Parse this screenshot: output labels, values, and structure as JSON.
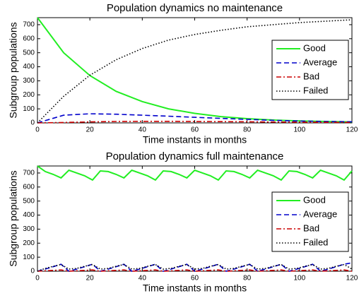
{
  "chart_data": [
    {
      "type": "line",
      "title": "Population dynamics no maintenance",
      "xlabel": "Time instants in months",
      "ylabel": "Subgroup populations",
      "x": [
        0,
        10,
        20,
        30,
        40,
        50,
        60,
        70,
        80,
        90,
        100,
        110,
        120
      ],
      "series": [
        {
          "name": "Good",
          "color": "#22ee22",
          "dash": "solid",
          "values": [
            750,
            500,
            337,
            225,
            152,
            100,
            68,
            45,
            30,
            20,
            14,
            10,
            7
          ]
        },
        {
          "name": "Average",
          "color": "#0000cc",
          "dash": "dashed",
          "values": [
            0,
            55,
            65,
            62,
            55,
            48,
            40,
            32,
            25,
            18,
            13,
            10,
            8
          ]
        },
        {
          "name": "Bad",
          "color": "#cc0000",
          "dash": "dashdot",
          "values": [
            0,
            3,
            7,
            10,
            11,
            11,
            10,
            9,
            8,
            6,
            5,
            4,
            3
          ]
        },
        {
          "name": "Failed",
          "color": "#000000",
          "dash": "dotted",
          "values": [
            0,
            190,
            340,
            450,
            530,
            590,
            630,
            660,
            685,
            700,
            715,
            725,
            735
          ]
        }
      ],
      "xlim": [
        0,
        120
      ],
      "xticks": [
        0,
        20,
        40,
        60,
        80,
        100,
        120
      ],
      "ylim": [
        0,
        750
      ],
      "yticks": [
        0,
        100,
        200,
        300,
        400,
        500,
        600,
        700
      ],
      "legend": "northeast"
    },
    {
      "type": "line",
      "title": "Population dynamics full maintenance",
      "xlabel": "Time instants in months",
      "ylabel": "Subgroup populations",
      "x": [
        0,
        3,
        6,
        9,
        12,
        15,
        18,
        21,
        24,
        27,
        30,
        33,
        36,
        39,
        42,
        45,
        48,
        51,
        54,
        57,
        60,
        63,
        66,
        69,
        72,
        75,
        78,
        81,
        84,
        87,
        90,
        93,
        96,
        99,
        102,
        105,
        108,
        111,
        114,
        117,
        120
      ],
      "series": [
        {
          "name": "Good",
          "color": "#22ee22",
          "dash": "solid",
          "values": [
            750,
            710,
            690,
            665,
            720,
            700,
            680,
            650,
            715,
            710,
            690,
            665,
            720,
            700,
            680,
            650,
            715,
            710,
            690,
            665,
            720,
            700,
            680,
            650,
            715,
            710,
            690,
            665,
            720,
            700,
            680,
            650,
            715,
            710,
            690,
            665,
            720,
            700,
            680,
            650,
            715
          ]
        },
        {
          "name": "Average",
          "color": "#0000cc",
          "dash": "dashed",
          "values": [
            0,
            15,
            32,
            50,
            0,
            15,
            32,
            50,
            0,
            15,
            32,
            50,
            0,
            15,
            32,
            50,
            0,
            15,
            32,
            50,
            0,
            15,
            32,
            50,
            0,
            15,
            32,
            50,
            0,
            15,
            32,
            50,
            0,
            15,
            32,
            50,
            0,
            15,
            32,
            50,
            60
          ]
        },
        {
          "name": "Bad",
          "color": "#cc0000",
          "dash": "dashdot",
          "values": [
            0,
            3,
            6,
            9,
            0,
            3,
            6,
            9,
            0,
            3,
            6,
            9,
            0,
            3,
            6,
            9,
            0,
            3,
            6,
            9,
            0,
            3,
            6,
            9,
            0,
            3,
            6,
            9,
            0,
            3,
            6,
            9,
            0,
            3,
            6,
            9,
            0,
            3,
            6,
            9,
            0
          ]
        },
        {
          "name": "Failed",
          "color": "#000000",
          "dash": "dotted",
          "values": [
            0,
            20,
            35,
            48,
            15,
            20,
            35,
            48,
            15,
            20,
            35,
            48,
            15,
            20,
            35,
            48,
            15,
            20,
            35,
            48,
            15,
            20,
            35,
            48,
            15,
            20,
            35,
            48,
            15,
            20,
            35,
            48,
            15,
            20,
            35,
            48,
            15,
            20,
            35,
            48,
            15
          ]
        }
      ],
      "xlim": [
        0,
        120
      ],
      "xticks": [
        0,
        20,
        40,
        60,
        80,
        100,
        120
      ],
      "ylim": [
        0,
        750
      ],
      "yticks": [
        0,
        100,
        200,
        300,
        400,
        500,
        600,
        700
      ],
      "legend": "northeast"
    }
  ]
}
